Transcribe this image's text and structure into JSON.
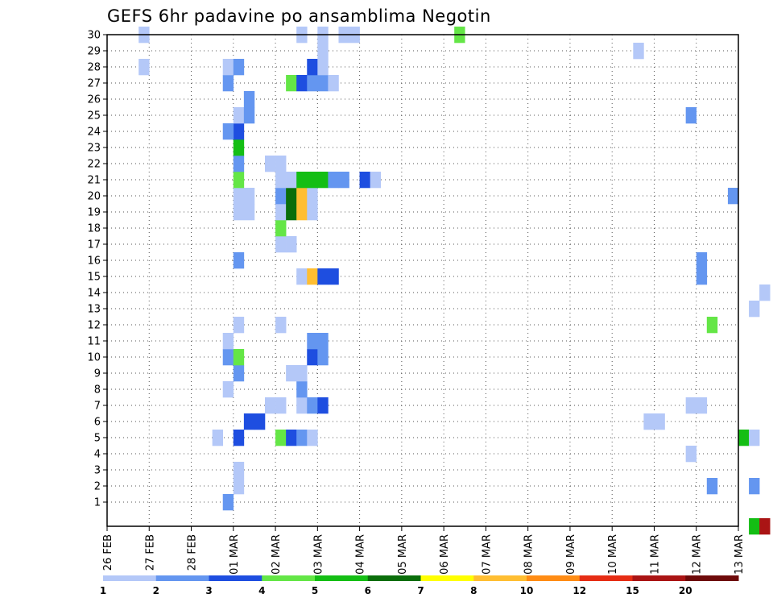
{
  "chart_data": {
    "type": "heatmap",
    "title": "GEFS 6hr padavine po ansamblima Negotin",
    "xlabel": "",
    "ylabel": "",
    "x_labels": [
      "26 FEB",
      "27 FEB",
      "28 FEB",
      "01 MAR",
      "02 MAR",
      "03 MAR",
      "04 MAR",
      "05 MAR",
      "06 MAR",
      "07 MAR",
      "08 MAR",
      "09 MAR",
      "10 MAR",
      "11 MAR",
      "12 MAR",
      "13 MAR"
    ],
    "y_labels": [
      "1",
      "2",
      "3",
      "4",
      "5",
      "6",
      "7",
      "8",
      "9",
      "10",
      "11",
      "12",
      "13",
      "14",
      "15",
      "16",
      "17",
      "18",
      "19",
      "20",
      "21",
      "22",
      "23",
      "24",
      "25",
      "26",
      "27",
      "28",
      "29",
      "30"
    ],
    "time_step_hours": 6,
    "grid": true,
    "colorbar": {
      "position": "bottom",
      "labels": [
        "1",
        "2",
        "3",
        "4",
        "5",
        "6",
        "7",
        "8",
        "10",
        "12",
        "15",
        "20"
      ],
      "colors": [
        "#b4c8f8",
        "#6496f0",
        "#1e4ee0",
        "#64e646",
        "#14be14",
        "#0a6e0a",
        "#ffff00",
        "#ffbe32",
        "#ff8c14",
        "#e62d14",
        "#aa1414",
        "#6e0a0a"
      ]
    },
    "cells": [
      [
        1,
        2.75,
        2.5
      ],
      [
        2,
        3.0,
        1.5
      ],
      [
        2,
        14.25,
        2.5
      ],
      [
        2,
        15.25,
        2.5
      ],
      [
        3,
        3.0,
        1.5
      ],
      [
        4,
        13.75,
        1.5
      ],
      [
        5,
        2.5,
        1.5
      ],
      [
        5,
        3.0,
        3.5
      ],
      [
        5,
        4.0,
        4.5
      ],
      [
        5,
        4.25,
        3.5
      ],
      [
        5,
        4.5,
        2.5
      ],
      [
        5,
        4.75,
        1.5
      ],
      [
        5,
        15.0,
        5.5
      ],
      [
        5,
        15.25,
        1.5
      ],
      [
        6,
        3.25,
        3.5
      ],
      [
        6,
        3.5,
        3.5
      ],
      [
        6,
        12.75,
        1.5
      ],
      [
        6,
        13.0,
        1.5
      ],
      [
        7,
        3.75,
        1.5
      ],
      [
        7,
        4.0,
        1.5
      ],
      [
        7,
        4.5,
        1.5
      ],
      [
        7,
        4.75,
        2.5
      ],
      [
        7,
        5.0,
        3.5
      ],
      [
        7,
        13.75,
        1.5
      ],
      [
        7,
        14.0,
        1.5
      ],
      [
        8,
        2.75,
        1.5
      ],
      [
        8,
        4.5,
        2.5
      ],
      [
        9,
        3.0,
        2.5
      ],
      [
        9,
        4.25,
        1.5
      ],
      [
        9,
        4.5,
        1.5
      ],
      [
        10,
        2.75,
        2.5
      ],
      [
        10,
        3.0,
        4.5
      ],
      [
        10,
        4.75,
        3.5
      ],
      [
        10,
        5.0,
        2.5
      ],
      [
        11,
        2.75,
        1.5
      ],
      [
        11,
        4.75,
        2.5
      ],
      [
        11,
        5.0,
        2.5
      ],
      [
        12,
        3.0,
        1.5
      ],
      [
        12,
        4.0,
        1.5
      ],
      [
        12,
        14.25,
        4.5
      ],
      [
        13,
        15.25,
        1.5
      ],
      [
        14,
        15.5,
        1.5
      ],
      [
        15,
        4.5,
        1.5
      ],
      [
        15,
        4.75,
        8.5
      ],
      [
        15,
        5.0,
        3.5
      ],
      [
        15,
        5.25,
        3.5
      ],
      [
        15,
        14.0,
        2.5
      ],
      [
        16,
        3.0,
        2.5
      ],
      [
        16,
        14.0,
        2.5
      ],
      [
        17,
        4.0,
        1.5
      ],
      [
        17,
        4.25,
        1.5
      ],
      [
        18,
        4.0,
        1.5
      ],
      [
        18,
        4.0,
        4.5
      ],
      [
        19,
        3.0,
        1.5
      ],
      [
        19,
        3.25,
        1.5
      ],
      [
        19,
        4.0,
        1.5
      ],
      [
        19,
        4.25,
        6.5
      ],
      [
        19,
        4.5,
        8.5
      ],
      [
        19,
        4.75,
        1.5
      ],
      [
        20,
        3.0,
        1.5
      ],
      [
        20,
        3.25,
        1.5
      ],
      [
        20,
        4.0,
        2.5
      ],
      [
        20,
        4.25,
        6.5
      ],
      [
        20,
        4.5,
        8.5
      ],
      [
        20,
        4.75,
        1.5
      ],
      [
        20,
        14.75,
        2.5
      ],
      [
        21,
        3.0,
        4.5
      ],
      [
        21,
        4.0,
        1.5
      ],
      [
        21,
        4.25,
        1.5
      ],
      [
        21,
        4.5,
        5.5
      ],
      [
        21,
        4.75,
        5.5
      ],
      [
        21,
        5.0,
        5.5
      ],
      [
        21,
        5.25,
        2.5
      ],
      [
        21,
        5.5,
        2.5
      ],
      [
        21,
        6.0,
        3.5
      ],
      [
        21,
        6.25,
        1.5
      ],
      [
        22,
        3.0,
        2.5
      ],
      [
        22,
        3.75,
        1.5
      ],
      [
        22,
        4.0,
        1.5
      ],
      [
        23,
        3.0,
        5.5
      ],
      [
        24,
        3.0,
        3.5
      ],
      [
        24,
        2.75,
        2.5
      ],
      [
        25,
        3.0,
        1.5
      ],
      [
        25,
        3.25,
        2.5
      ],
      [
        25,
        13.75,
        2.5
      ],
      [
        26,
        3.25,
        2.5
      ],
      [
        27,
        2.75,
        2.5
      ],
      [
        27,
        4.25,
        4.5
      ],
      [
        27,
        4.5,
        3.5
      ],
      [
        27,
        4.75,
        2.5
      ],
      [
        27,
        5.0,
        2.5
      ],
      [
        27,
        5.25,
        1.5
      ],
      [
        28,
        0.75,
        1.5
      ],
      [
        28,
        2.75,
        1.5
      ],
      [
        28,
        3.0,
        2.5
      ],
      [
        28,
        4.75,
        3.5
      ],
      [
        28,
        5.0,
        1.5
      ],
      [
        29,
        5.0,
        1.5
      ],
      [
        29,
        12.5,
        1.5
      ],
      [
        30,
        0.75,
        1.5
      ],
      [
        30,
        4.5,
        1.5
      ],
      [
        30,
        5.0,
        1.5
      ],
      [
        30,
        5.5,
        1.5
      ],
      [
        30,
        5.75,
        1.5
      ],
      [
        30,
        8.25,
        4.5
      ],
      [
        0,
        15.25,
        5.5
      ],
      [
        0,
        15.5,
        15.5
      ]
    ]
  }
}
